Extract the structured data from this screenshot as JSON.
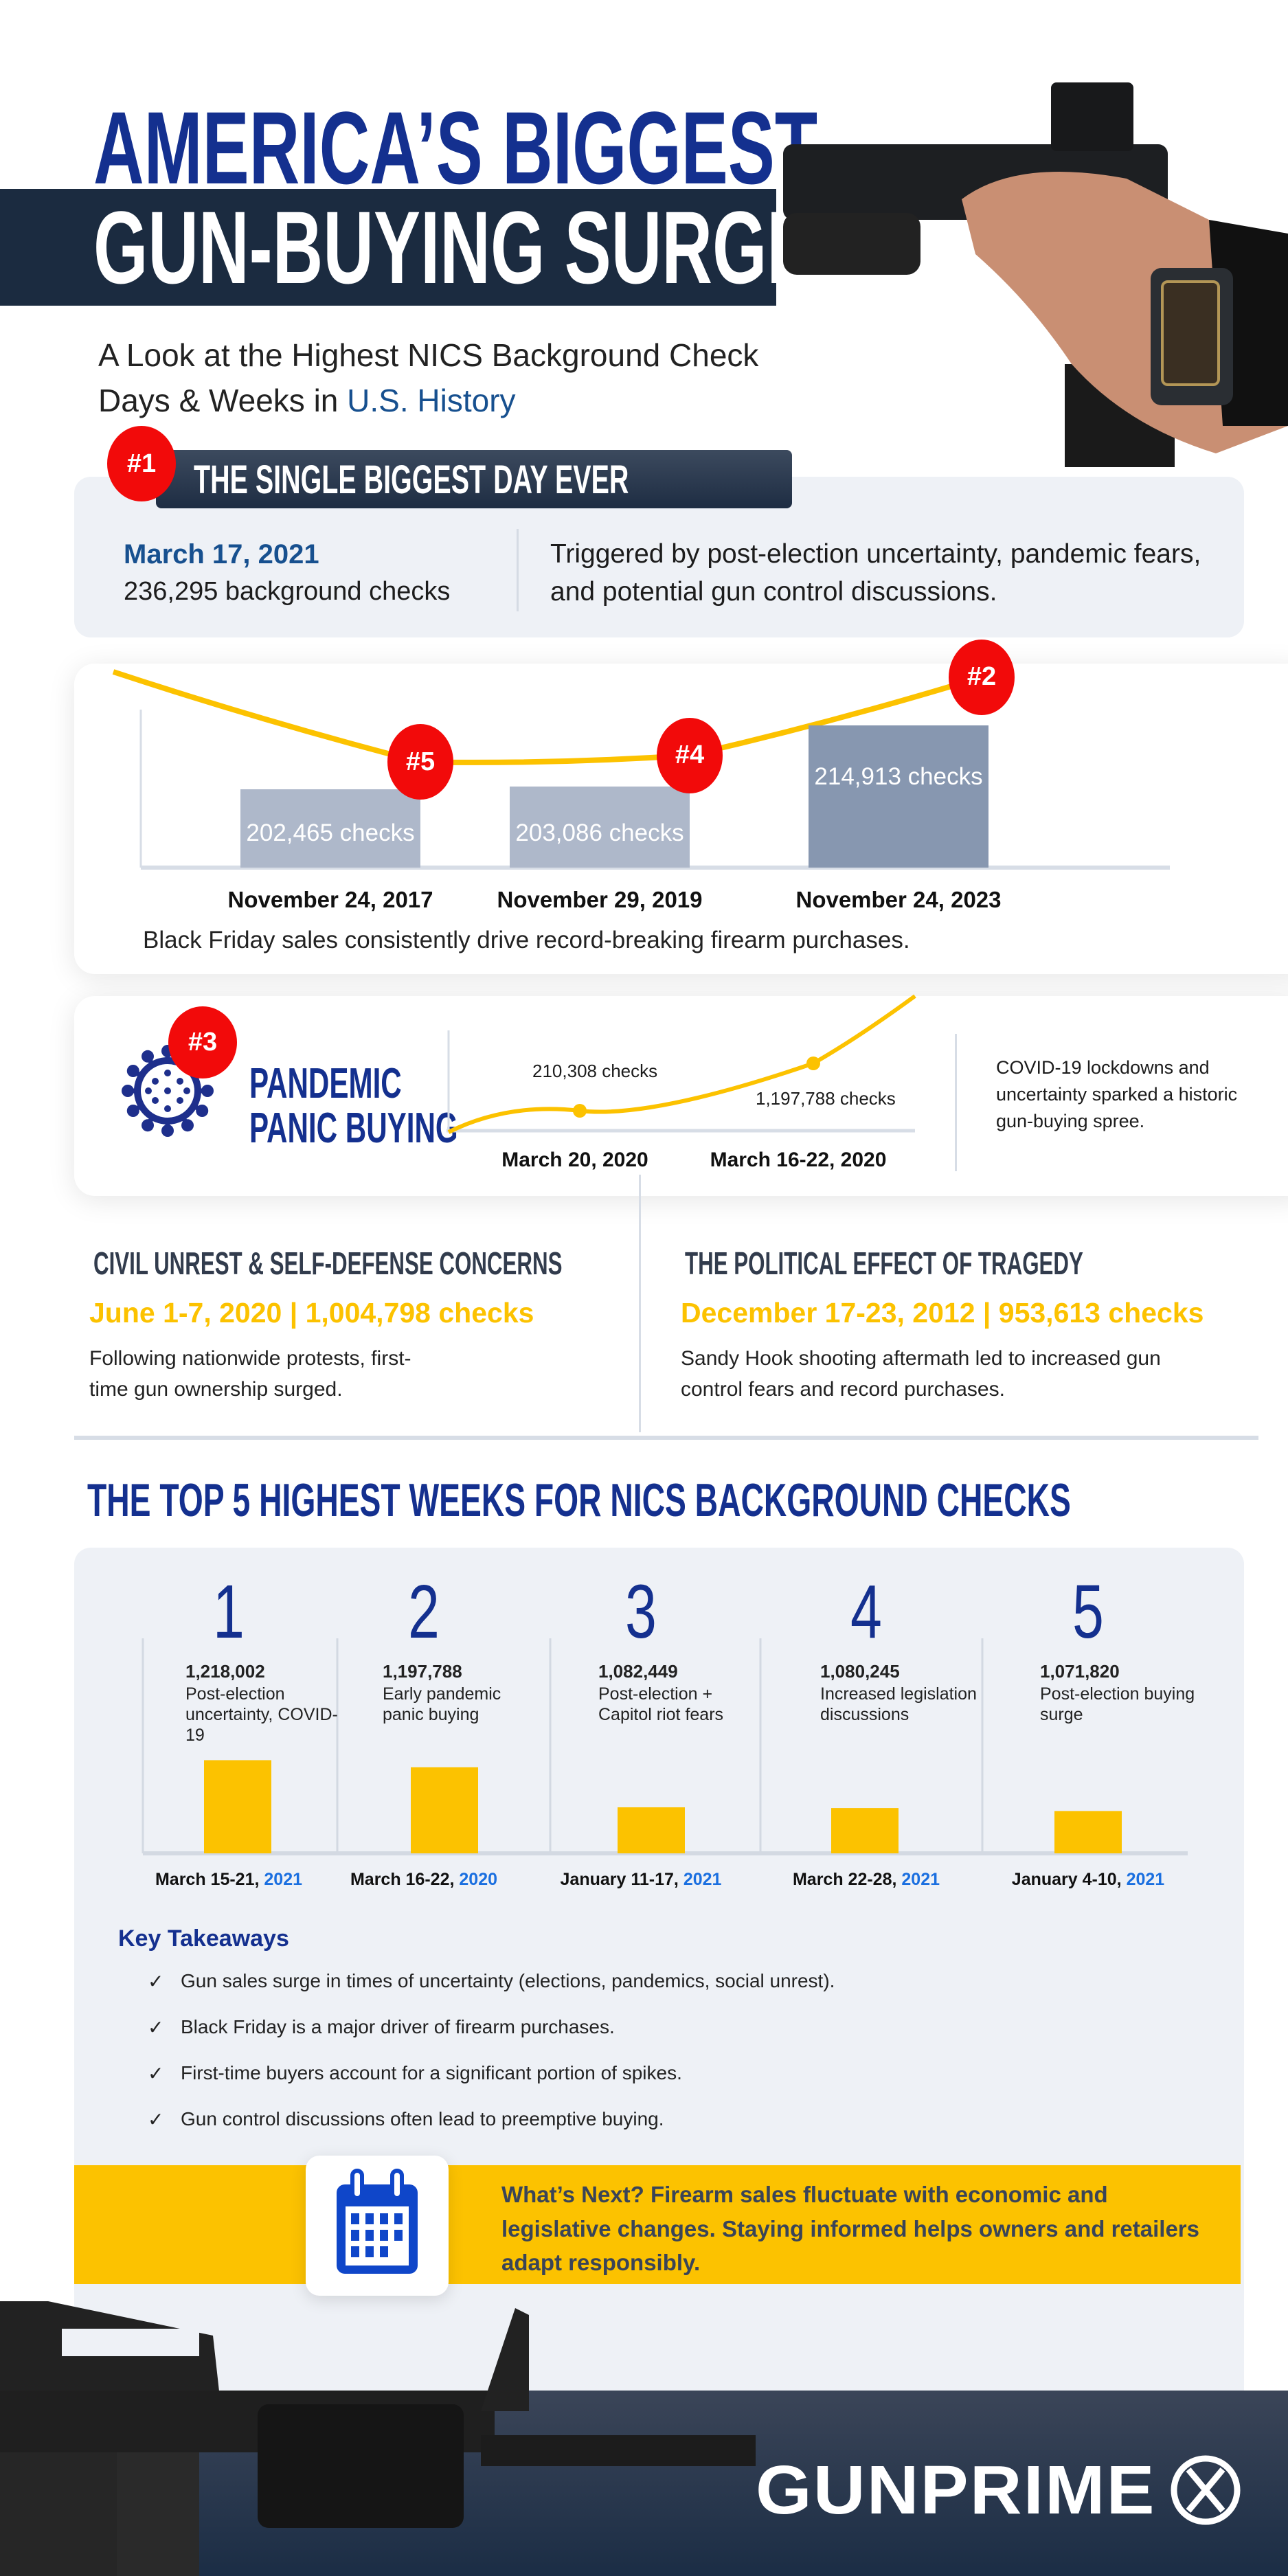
{
  "header": {
    "title_line1": "AMERICA’S BIGGEST",
    "title_line2": "GUN-BUYING SURGES",
    "subtitle_line1": "A Look at the Highest NICS Background Check",
    "subtitle_line2_prefix": "Days & Weeks in ",
    "subtitle_line2_highlight": "U.S. History"
  },
  "single_day": {
    "rank": "#1",
    "heading": "THE SINGLE BIGGEST DAY EVER",
    "date": "March 17, 2021",
    "count": "236,295 background checks",
    "description": "Triggered by post-election uncertainty, pandemic fears, and potential gun control discussions."
  },
  "black_friday": {
    "caption": "Black Friday sales consistently drive record-breaking firearm purchases."
  },
  "pandemic": {
    "rank": "#3",
    "title_line1": "PANDEMIC",
    "title_line2": "PANIC BUYING",
    "description": "COVID-19 lockdowns and uncertainty sparked a historic gun-buying spree."
  },
  "columns": [
    {
      "heading": "CIVIL UNREST & SELF-DEFENSE CONCERNS",
      "highlight": "June 1-7, 2020 | 1,004,798 checks",
      "body": "Following nationwide protests, first-time gun ownership surged."
    },
    {
      "heading": "THE POLITICAL EFFECT OF TRAGEDY",
      "highlight": "December 17-23, 2012 | 953,613 checks",
      "body": "Sandy Hook shooting aftermath led to increased gun control fears and record purchases."
    }
  ],
  "top5": {
    "heading": "THE TOP 5 HIGHEST WEEKS FOR NICS BACKGROUND CHECKS"
  },
  "takeaways": {
    "heading": "Key Takeaways",
    "items": [
      "Gun sales surge in times of uncertainty (elections, pandemics, social unrest).",
      "Black Friday is a major driver of firearm purchases.",
      "First-time buyers account for a significant portion of spikes.",
      "Gun control discussions often lead to preemptive buying."
    ]
  },
  "whats_next": {
    "text": "What’s Next? Firearm sales fluctuate with economic and legislative changes. Staying informed helps owners and retailers adapt responsibly.",
    "icon": "calendar-icon"
  },
  "footer": {
    "logo": "GUNPRIME"
  },
  "colors": {
    "navy": "#14308f",
    "dark": "#1b2b40",
    "red": "#f20a0a",
    "yellow": "#fcc200",
    "bar_gray": "#aeb8ca",
    "bar_dark": "#8797b0",
    "year_blue": "#1a6fe0"
  },
  "chart_data": [
    {
      "type": "bar",
      "categories": [
        "November 24, 2017",
        "November 29, 2019",
        "November 24, 2023"
      ],
      "values": [
        202465,
        203086,
        214913
      ],
      "labels": [
        "202,465  checks",
        "203,086 checks",
        "214,913 checks"
      ],
      "ranks": [
        "#5",
        "#4",
        "#2"
      ],
      "trend_line": true
    },
    {
      "type": "line",
      "categories": [
        "March 20, 2020",
        "March 16-22, 2020"
      ],
      "values": [
        210308,
        1197788
      ],
      "labels": [
        "210,308 checks",
        "1,197,788 checks"
      ]
    },
    {
      "type": "bar",
      "ranks": [
        "1",
        "2",
        "3",
        "4",
        "5"
      ],
      "values": [
        1218002,
        1197788,
        1082449,
        1080245,
        1071820
      ],
      "value_labels": [
        "1,218,002",
        "1,197,788",
        "1,082,449",
        "1,080,245",
        "1,071,820"
      ],
      "descriptions": [
        "Post-election uncertainty, COVID-19",
        "Early pandemic panic buying",
        "Post-election + Capitol riot fears",
        "Increased legislation discussions",
        "Post-election buying surge"
      ],
      "dates": [
        "March 15-21, ",
        "March 16-22, ",
        "January 11-17, ",
        "March 22-28, ",
        "January 4-10, "
      ],
      "years": [
        "2021",
        "2020",
        "2021",
        "2021",
        "2021"
      ]
    }
  ]
}
